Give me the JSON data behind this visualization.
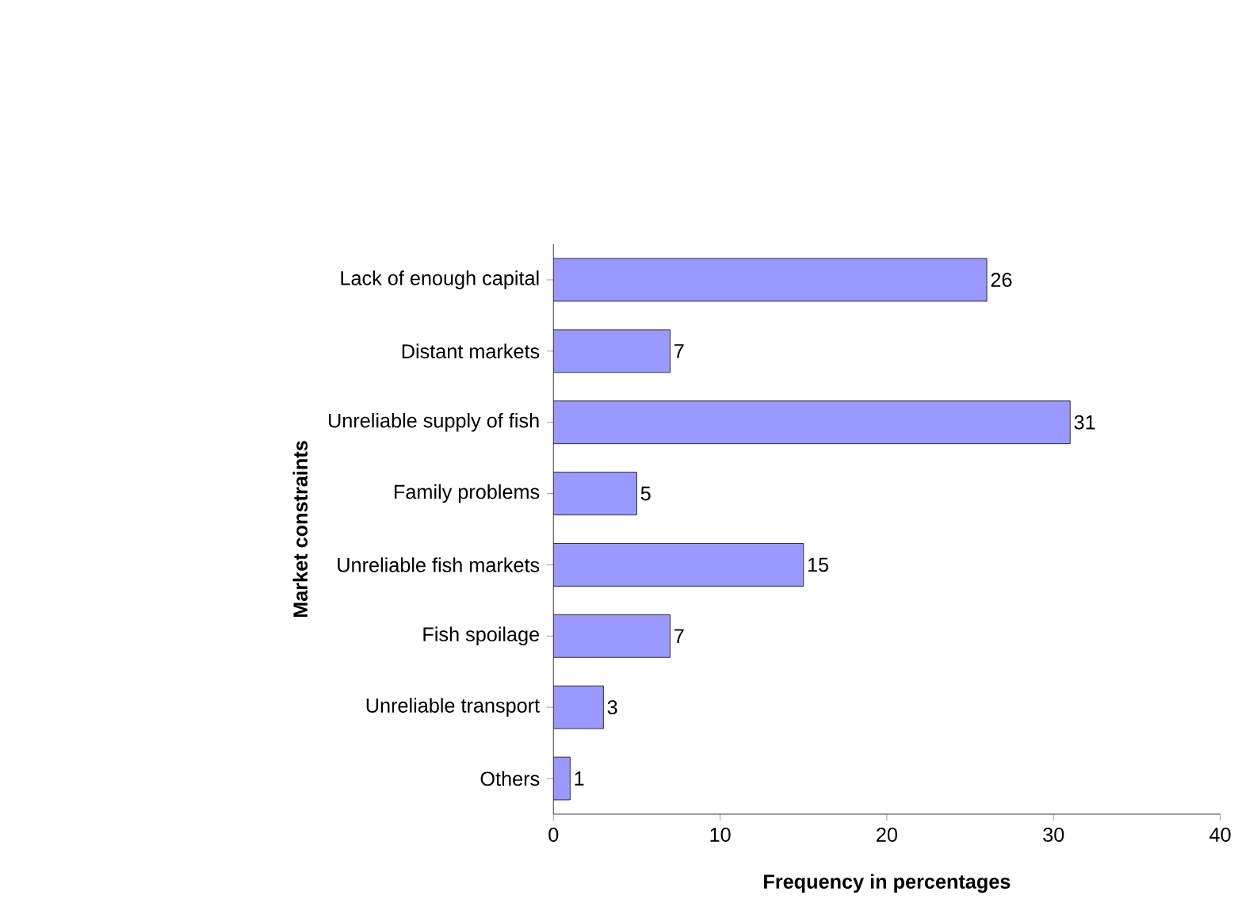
{
  "chart_data": {
    "type": "bar",
    "orientation": "horizontal",
    "categories": [
      "Lack of enough capital",
      "Distant markets",
      "Unreliable supply of fish",
      "Family problems",
      "Unreliable fish markets",
      "Fish spoilage",
      "Unreliable transport",
      "Others"
    ],
    "values": [
      26,
      7,
      31,
      5,
      15,
      7,
      3,
      1
    ],
    "color": "#9999ff",
    "xlim": [
      0,
      40
    ],
    "xticks": [
      0,
      10,
      20,
      30,
      40
    ],
    "data_labels": true,
    "xlabel": "Frequency in percentages",
    "ylabel": "Market constraints"
  }
}
